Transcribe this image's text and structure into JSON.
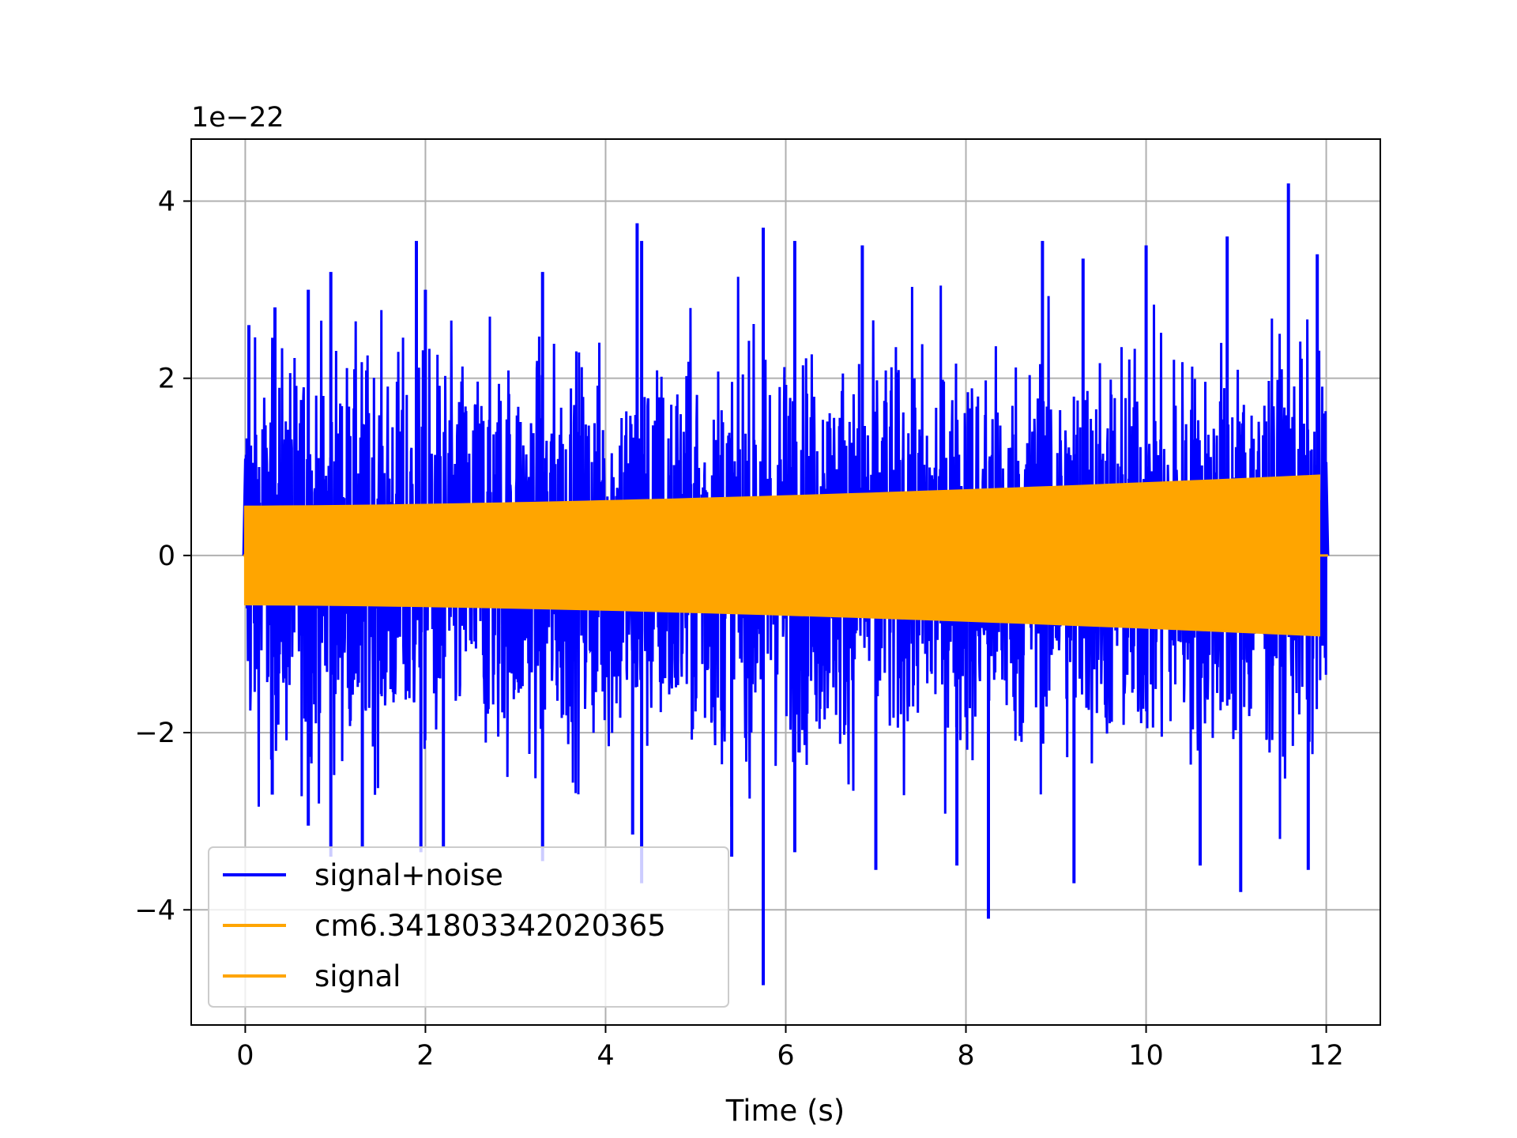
{
  "chart_data": {
    "type": "line",
    "title": "",
    "xlabel": "Time (s)",
    "ylabel": "",
    "y_scale_label": "1e−22",
    "xlim": [
      -0.6,
      12.6
    ],
    "ylim": [
      -5.3,
      4.7
    ],
    "y_scale": 1e-22,
    "x_ticks": [
      0,
      2,
      4,
      6,
      8,
      10,
      12
    ],
    "x_tick_labels": [
      "0",
      "2",
      "4",
      "6",
      "8",
      "10",
      "12"
    ],
    "y_ticks": [
      -4,
      -2,
      0,
      2,
      4
    ],
    "y_tick_labels": [
      "−4",
      "−2",
      "0",
      "2",
      "4"
    ],
    "grid": true,
    "legend_position": "lower-left",
    "series": [
      {
        "name": "signal+noise",
        "color": "#0000ff",
        "x_range": [
          0,
          12
        ],
        "description_values": {
          "typical_amplitude": 1.4,
          "max": 4.2,
          "min": -4.85
        },
        "peaks": [
          [
            0.04,
            2.6
          ],
          [
            0.33,
            2.8
          ],
          [
            0.7,
            3.0
          ],
          [
            0.95,
            3.2
          ],
          [
            1.9,
            3.55
          ],
          [
            2.0,
            3.0
          ],
          [
            3.3,
            3.2
          ],
          [
            4.35,
            3.75
          ],
          [
            4.4,
            3.55
          ],
          [
            5.75,
            3.7
          ],
          [
            6.1,
            3.55
          ],
          [
            6.85,
            3.5
          ],
          [
            8.85,
            3.55
          ],
          [
            9.3,
            3.35
          ],
          [
            10.0,
            3.5
          ],
          [
            10.9,
            3.6
          ],
          [
            11.58,
            4.2
          ],
          [
            11.9,
            3.4
          ]
        ],
        "troughs": [
          [
            0.3,
            -2.7
          ],
          [
            0.7,
            -3.05
          ],
          [
            0.95,
            -3.4
          ],
          [
            1.3,
            -3.3
          ],
          [
            1.95,
            -3.35
          ],
          [
            2.2,
            -3.3
          ],
          [
            3.3,
            -3.45
          ],
          [
            4.3,
            -3.15
          ],
          [
            4.4,
            -3.7
          ],
          [
            5.4,
            -3.4
          ],
          [
            5.75,
            -4.85
          ],
          [
            6.1,
            -3.35
          ],
          [
            7.0,
            -3.55
          ],
          [
            7.9,
            -3.5
          ],
          [
            8.25,
            -4.1
          ],
          [
            9.2,
            -3.7
          ],
          [
            10.6,
            -3.5
          ],
          [
            11.05,
            -3.8
          ],
          [
            11.8,
            -3.55
          ]
        ]
      },
      {
        "name": "cm6.341803342020365",
        "color": "#ffa500",
        "x_range": [
          0,
          12
        ],
        "amplitude_start": 0.55,
        "amplitude_end": 0.9
      },
      {
        "name": "signal",
        "color": "#ffa500",
        "x_range": [
          0,
          11.92
        ],
        "amplitude_start": 0.55,
        "amplitude_end": 0.9
      }
    ]
  }
}
